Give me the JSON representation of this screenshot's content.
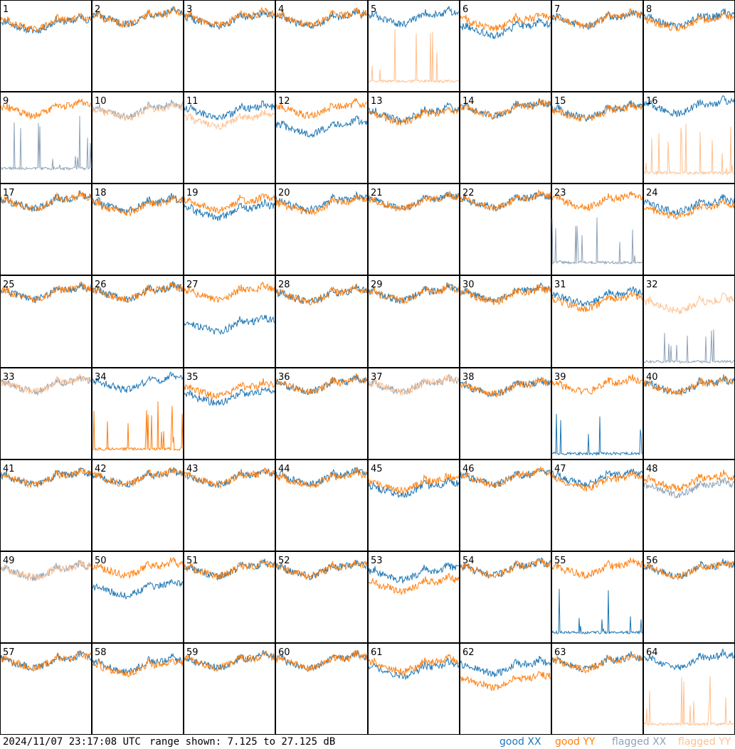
{
  "footer": {
    "timestamp": "2024/11/07 23:17:08 UTC",
    "range_text": "range shown: 7.125 to 27.125 dB"
  },
  "legend": [
    {
      "label": "good XX",
      "color": "#1f77b4"
    },
    {
      "label": "good YY",
      "color": "#ff7f0e"
    },
    {
      "label": "flagged XX",
      "color": "#8fa3b8"
    },
    {
      "label": "flagged YY",
      "color": "#ffc08f"
    }
  ],
  "chart_data": {
    "type": "line",
    "ylim": [
      7.125,
      27.125
    ],
    "unit": "dB",
    "grid": "8x8 small multiples",
    "panels": [
      {
        "id": "1",
        "xx": "good",
        "yy": "good",
        "xx_level": 21.5,
        "yy_level": 21.8
      },
      {
        "id": "2",
        "xx": "good",
        "yy": "good",
        "xx_level": 23,
        "yy_level": 23
      },
      {
        "id": "3",
        "xx": "good",
        "yy": "good",
        "xx_level": 22.5,
        "yy_level": 22.8
      },
      {
        "id": "4",
        "xx": "good",
        "yy": "good",
        "xx_level": 22.5,
        "yy_level": 22.8
      },
      {
        "id": "5",
        "xx": "good",
        "yy": "flagged",
        "xx_level": 23,
        "yy_level": 9
      },
      {
        "id": "6",
        "xx": "good",
        "yy": "good",
        "xx_level": 20.5,
        "yy_level": 22
      },
      {
        "id": "7",
        "xx": "good",
        "yy": "good",
        "xx_level": 22.5,
        "yy_level": 22.5
      },
      {
        "id": "8",
        "xx": "good",
        "yy": "good",
        "xx_level": 22.5,
        "yy_level": 22
      },
      {
        "id": "9",
        "xx": "flagged",
        "yy": "good",
        "xx_level": 10,
        "yy_level": 23
      },
      {
        "id": "10",
        "xx": "flagged",
        "yy": "flagged",
        "xx_level": 22.8,
        "yy_level": 22.5
      },
      {
        "id": "11",
        "xx": "good",
        "yy": "flagged",
        "xx_level": 22.5,
        "yy_level": 20.5
      },
      {
        "id": "12",
        "xx": "good",
        "yy": "good",
        "xx_level": 19,
        "yy_level": 23
      },
      {
        "id": "13",
        "xx": "good",
        "yy": "good",
        "xx_level": 22,
        "yy_level": 21.5
      },
      {
        "id": "14",
        "xx": "good",
        "yy": "good",
        "xx_level": 23,
        "yy_level": 23
      },
      {
        "id": "15",
        "xx": "good",
        "yy": "good",
        "xx_level": 22.5,
        "yy_level": 22.2
      },
      {
        "id": "16",
        "xx": "good",
        "yy": "flagged",
        "xx_level": 23.5,
        "yy_level": 9
      },
      {
        "id": "17",
        "xx": "good",
        "yy": "good",
        "xx_level": 22.8,
        "yy_level": 22.8
      },
      {
        "id": "18",
        "xx": "good",
        "yy": "good",
        "xx_level": 22.2,
        "yy_level": 21.8
      },
      {
        "id": "19",
        "xx": "good",
        "yy": "good",
        "xx_level": 20.8,
        "yy_level": 22.5
      },
      {
        "id": "20",
        "xx": "good",
        "yy": "good",
        "xx_level": 22.5,
        "yy_level": 22
      },
      {
        "id": "21",
        "xx": "good",
        "yy": "good",
        "xx_level": 22.8,
        "yy_level": 22.8
      },
      {
        "id": "22",
        "xx": "good",
        "yy": "good",
        "xx_level": 23,
        "yy_level": 23
      },
      {
        "id": "23",
        "xx": "flagged",
        "yy": "good",
        "xx_level": 9.5,
        "yy_level": 23
      },
      {
        "id": "24",
        "xx": "good",
        "yy": "good",
        "xx_level": 22,
        "yy_level": 21
      },
      {
        "id": "25",
        "xx": "good",
        "yy": "good",
        "xx_level": 23,
        "yy_level": 23
      },
      {
        "id": "26",
        "xx": "good",
        "yy": "good",
        "xx_level": 23,
        "yy_level": 23
      },
      {
        "id": "27",
        "xx": "good",
        "yy": "good",
        "xx_level": 16,
        "yy_level": 23
      },
      {
        "id": "28",
        "xx": "good",
        "yy": "good",
        "xx_level": 22.5,
        "yy_level": 22.5
      },
      {
        "id": "29",
        "xx": "good",
        "yy": "good",
        "xx_level": 22.8,
        "yy_level": 22.8
      },
      {
        "id": "30",
        "xx": "good",
        "yy": "good",
        "xx_level": 22.8,
        "yy_level": 22.5
      },
      {
        "id": "31",
        "xx": "good",
        "yy": "good",
        "xx_level": 22,
        "yy_level": 21
      },
      {
        "id": "32",
        "xx": "flagged",
        "yy": "flagged",
        "xx_level": 8,
        "yy_level": 20.5
      },
      {
        "id": "33",
        "xx": "flagged",
        "yy": "flagged",
        "xx_level": 23,
        "yy_level": 23
      },
      {
        "id": "34",
        "xx": "good",
        "yy": "good",
        "xx_level": 23.5,
        "yy_level": 9
      },
      {
        "id": "35",
        "xx": "good",
        "yy": "good",
        "xx_level": 20.5,
        "yy_level": 22
      },
      {
        "id": "36",
        "xx": "good",
        "yy": "good",
        "xx_level": 23,
        "yy_level": 23
      },
      {
        "id": "37",
        "xx": "flagged",
        "yy": "flagged",
        "xx_level": 23,
        "yy_level": 23
      },
      {
        "id": "38",
        "xx": "good",
        "yy": "good",
        "xx_level": 22.5,
        "yy_level": 22.5
      },
      {
        "id": "39",
        "xx": "good",
        "yy": "good",
        "xx_level": 8,
        "yy_level": 23
      },
      {
        "id": "40",
        "xx": "good",
        "yy": "good",
        "xx_level": 22.8,
        "yy_level": 22.8
      },
      {
        "id": "41",
        "xx": "good",
        "yy": "good",
        "xx_level": 22.8,
        "yy_level": 22.8
      },
      {
        "id": "42",
        "xx": "good",
        "yy": "good",
        "xx_level": 22.8,
        "yy_level": 22.8
      },
      {
        "id": "43",
        "xx": "good",
        "yy": "good",
        "xx_level": 22.8,
        "yy_level": 22.8
      },
      {
        "id": "44",
        "xx": "good",
        "yy": "good",
        "xx_level": 22.8,
        "yy_level": 22.5
      },
      {
        "id": "45",
        "xx": "good",
        "yy": "good",
        "xx_level": 20.5,
        "yy_level": 21.5
      },
      {
        "id": "46",
        "xx": "good",
        "yy": "good",
        "xx_level": 22.8,
        "yy_level": 22.8
      },
      {
        "id": "47",
        "xx": "good",
        "yy": "good",
        "xx_level": 22.8,
        "yy_level": 22
      },
      {
        "id": "48",
        "xx": "flagged",
        "yy": "good",
        "xx_level": 20.5,
        "yy_level": 22
      },
      {
        "id": "49",
        "xx": "flagged",
        "yy": "flagged",
        "xx_level": 22.5,
        "yy_level": 22.5
      },
      {
        "id": "50",
        "xx": "good",
        "yy": "good",
        "xx_level": 18.5,
        "yy_level": 23
      },
      {
        "id": "51",
        "xx": "good",
        "yy": "good",
        "xx_level": 22.8,
        "yy_level": 22.8
      },
      {
        "id": "52",
        "xx": "good",
        "yy": "good",
        "xx_level": 22.8,
        "yy_level": 22.8
      },
      {
        "id": "53",
        "xx": "good",
        "yy": "good",
        "xx_level": 22,
        "yy_level": 19.5
      },
      {
        "id": "54",
        "xx": "good",
        "yy": "good",
        "xx_level": 23,
        "yy_level": 23
      },
      {
        "id": "55",
        "xx": "good",
        "yy": "good",
        "xx_level": 9,
        "yy_level": 23
      },
      {
        "id": "56",
        "xx": "good",
        "yy": "good",
        "xx_level": 22.8,
        "yy_level": 22.8
      },
      {
        "id": "57",
        "xx": "good",
        "yy": "good",
        "xx_level": 22.8,
        "yy_level": 22.8
      },
      {
        "id": "58",
        "xx": "good",
        "yy": "good",
        "xx_level": 22,
        "yy_level": 21.5
      },
      {
        "id": "59",
        "xx": "good",
        "yy": "good",
        "xx_level": 22.8,
        "yy_level": 22.8
      },
      {
        "id": "60",
        "xx": "good",
        "yy": "good",
        "xx_level": 22.8,
        "yy_level": 22.8
      },
      {
        "id": "61",
        "xx": "good",
        "yy": "good",
        "xx_level": 21,
        "yy_level": 22
      },
      {
        "id": "62",
        "xx": "good",
        "yy": "good",
        "xx_level": 21.5,
        "yy_level": 18.5
      },
      {
        "id": "63",
        "xx": "good",
        "yy": "good",
        "xx_level": 22.5,
        "yy_level": 22.5
      },
      {
        "id": "64",
        "xx": "good",
        "yy": "flagged",
        "xx_level": 23,
        "yy_level": 9
      }
    ]
  }
}
